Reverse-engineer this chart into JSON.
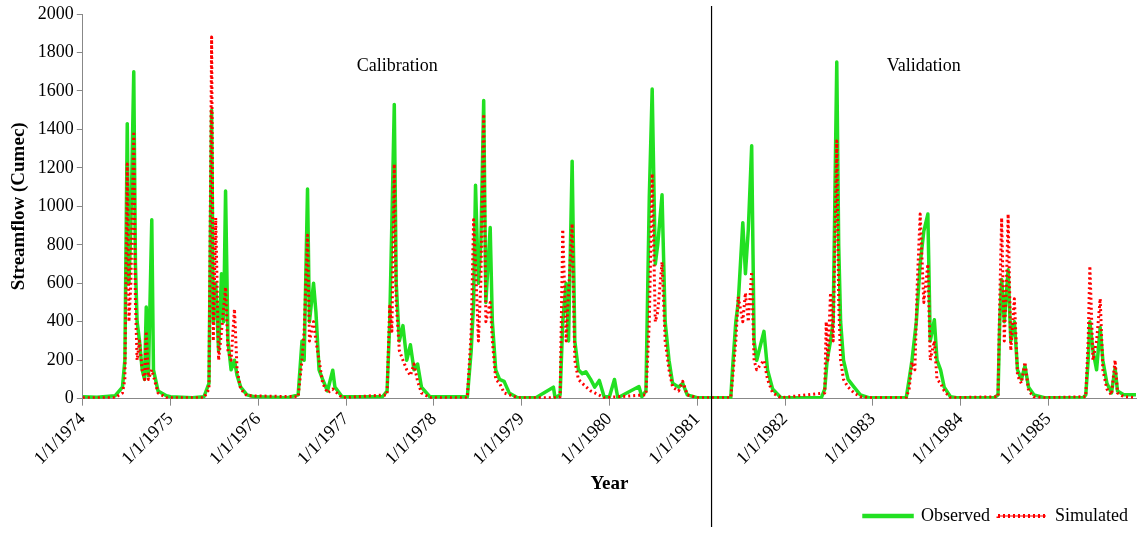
{
  "chart_data": {
    "type": "line",
    "xlabel": "Year",
    "ylabel": "Streamflow (Cumec)",
    "xlim": [
      "1974-01-01",
      "1985-12-31"
    ],
    "xticks": [
      {
        "value": "1974-01-01",
        "label": "1/1/1974"
      },
      {
        "value": "1975-01-01",
        "label": "1/1/1975"
      },
      {
        "value": "1976-01-01",
        "label": "1/1/1976"
      },
      {
        "value": "1977-01-01",
        "label": "1/1/1977"
      },
      {
        "value": "1978-01-01",
        "label": "1/1/1978"
      },
      {
        "value": "1979-01-01",
        "label": "1/1/1979"
      },
      {
        "value": "1980-01-01",
        "label": "1/1/1980"
      },
      {
        "value": "1981-01-01",
        "label": "1/1/1981"
      },
      {
        "value": "1982-01-01",
        "label": "1/1/1982"
      },
      {
        "value": "1983-01-01",
        "label": "1/1/1983"
      },
      {
        "value": "1984-01-01",
        "label": "1/1/1984"
      },
      {
        "value": "1985-01-01",
        "label": "1/1/1985"
      }
    ],
    "ylim": [
      0,
      2000
    ],
    "yticks": [
      0,
      200,
      400,
      600,
      800,
      1000,
      1200,
      1400,
      1600,
      1800,
      2000
    ],
    "legend": "bottom right",
    "ref_lines": [
      {
        "axis": "x",
        "value": "1981-03-01",
        "color": "#000000"
      }
    ],
    "annotations": [
      "Calibration",
      "Validation"
    ],
    "series": [
      {
        "name": "Observed",
        "color": "#22e022",
        "line_style": "solid",
        "x": [
          "1974-01-01",
          "1974-03-01",
          "1974-05-15",
          "1974-06-15",
          "1974-06-25",
          "1974-07-05",
          "1974-07-12",
          "1974-07-20",
          "1974-08-01",
          "1974-08-08",
          "1974-08-15",
          "1974-08-25",
          "1974-09-05",
          "1974-09-15",
          "1974-09-22",
          "1974-10-01",
          "1974-10-15",
          "1974-10-22",
          "1974-11-10",
          "1974-12-15",
          "1975-01-01",
          "1975-04-01",
          "1975-05-20",
          "1975-06-10",
          "1975-06-21",
          "1975-06-28",
          "1975-07-08",
          "1975-07-20",
          "1975-08-01",
          "1975-08-10",
          "1975-08-18",
          "1975-08-28",
          "1975-09-10",
          "1975-09-24",
          "1975-10-05",
          "1975-10-20",
          "1975-11-15",
          "1975-12-15",
          "1976-01-01",
          "1976-05-01",
          "1976-06-15",
          "1976-07-01",
          "1976-07-10",
          "1976-07-24",
          "1976-08-01",
          "1976-08-18",
          "1976-08-28",
          "1976-09-10",
          "1976-09-25",
          "1976-10-15",
          "1976-11-06",
          "1976-11-15",
          "1976-12-15",
          "1977-06-01",
          "1977-06-20",
          "1977-07-01",
          "1977-07-10",
          "1977-07-20",
          "1977-07-28",
          "1977-08-10",
          "1977-08-25",
          "1977-09-10",
          "1977-09-25",
          "1977-10-10",
          "1977-10-25",
          "1977-11-10",
          "1977-12-15",
          "1978-05-20",
          "1978-06-05",
          "1978-06-15",
          "1978-06-23",
          "1978-07-05",
          "1978-07-15",
          "1978-07-27",
          "1978-08-05",
          "1978-08-23",
          "1978-09-01",
          "1978-09-15",
          "1978-10-01",
          "1978-10-20",
          "1978-11-10",
          "1978-12-15",
          "1979-03-01",
          "1979-05-13",
          "1979-05-20",
          "1979-06-10",
          "1979-06-21",
          "1979-07-05",
          "1979-07-15",
          "1979-07-30",
          "1979-08-10",
          "1979-08-25",
          "1979-09-10",
          "1979-09-25",
          "1979-10-15",
          "1979-11-01",
          "1979-11-20",
          "1979-12-10",
          "1980-01-01",
          "1980-01-22",
          "1980-02-05",
          "1980-05-03",
          "1980-05-15",
          "1980-06-01",
          "1980-06-15",
          "1980-06-27",
          "1980-07-10",
          "1980-07-20",
          "1980-08-07",
          "1980-08-20",
          "1980-09-05",
          "1980-09-20",
          "1980-10-15",
          "1980-11-01",
          "1980-11-20",
          "1980-12-31",
          "1981-05-20",
          "1981-05-27",
          "1981-06-10",
          "1981-06-20",
          "1981-07-09",
          "1981-07-20",
          "1981-08-01",
          "1981-08-15",
          "1981-08-25",
          "1981-09-05",
          "1981-10-05",
          "1981-10-20",
          "1981-11-10",
          "1981-12-15",
          "1982-06-01",
          "1982-06-15",
          "1982-06-25",
          "1982-07-09",
          "1982-07-20",
          "1982-08-04",
          "1982-08-12",
          "1982-08-20",
          "1982-09-01",
          "1982-09-20",
          "1982-10-15",
          "1982-11-10",
          "1982-12-15",
          "1983-05-20",
          "1983-06-01",
          "1983-06-13",
          "1983-07-01",
          "1983-07-17",
          "1983-08-01",
          "1983-08-18",
          "1983-08-28",
          "1983-09-14",
          "1983-09-25",
          "1983-10-10",
          "1983-10-25",
          "1983-11-20",
          "1983-12-15",
          "1984-05-20",
          "1984-06-05",
          "1984-06-12",
          "1984-06-20",
          "1984-07-01",
          "1984-07-17",
          "1984-07-28",
          "1984-08-12",
          "1984-08-25",
          "1984-09-10",
          "1984-09-25",
          "1984-10-10",
          "1984-11-01",
          "1984-12-15",
          "1985-05-25",
          "1985-06-05",
          "1985-06-15",
          "1985-06-22",
          "1985-07-05",
          "1985-07-20",
          "1985-08-04",
          "1985-08-15",
          "1985-09-01",
          "1985-09-20",
          "1985-10-05",
          "1985-10-15",
          "1985-11-10",
          "1985-12-31"
        ],
        "values": [
          10,
          8,
          15,
          60,
          200,
          1430,
          600,
          900,
          1700,
          700,
          400,
          300,
          150,
          100,
          476,
          120,
          930,
          150,
          40,
          15,
          10,
          5,
          10,
          80,
          1500,
          400,
          600,
          250,
          650,
          400,
          1080,
          300,
          150,
          200,
          120,
          60,
          20,
          10,
          10,
          5,
          20,
          300,
          200,
          1090,
          400,
          600,
          450,
          150,
          100,
          40,
          148,
          60,
          10,
          10,
          40,
          400,
          920,
          1530,
          600,
          300,
          380,
          200,
          280,
          150,
          180,
          60,
          10,
          10,
          250,
          500,
          1110,
          600,
          800,
          1550,
          500,
          890,
          400,
          150,
          100,
          90,
          30,
          5,
          5,
          60,
          5,
          20,
          400,
          600,
          300,
          1235,
          300,
          150,
          130,
          140,
          100,
          60,
          95,
          10,
          10,
          100,
          5,
          63,
          10,
          40,
          1050,
          1610,
          700,
          800,
          1060,
          400,
          200,
          80,
          60,
          80,
          20,
          5,
          5,
          150,
          400,
          500,
          915,
          650,
          880,
          1315,
          300,
          200,
          350,
          150,
          50,
          5,
          5,
          50,
          200,
          300,
          400,
          1750,
          800,
          400,
          200,
          100,
          60,
          20,
          5,
          5,
          100,
          200,
          400,
          700,
          870,
          960,
          300,
          410,
          200,
          150,
          60,
          10,
          5,
          5,
          20,
          400,
          620,
          400,
          670,
          300,
          400,
          150,
          100,
          170,
          60,
          20,
          5,
          5,
          20,
          200,
          400,
          250,
          150,
          370,
          200,
          80,
          30,
          160,
          40,
          20,
          20
        ]
      },
      {
        "name": "Simulated",
        "color": "#ff0000",
        "line_style": "dotted",
        "x": [
          "1974-01-01",
          "1974-05-15",
          "1974-06-15",
          "1974-06-25",
          "1974-07-05",
          "1974-07-12",
          "1974-07-20",
          "1974-08-01",
          "1974-08-08",
          "1974-08-15",
          "1974-08-25",
          "1974-09-05",
          "1974-09-15",
          "1974-09-22",
          "1974-10-01",
          "1974-10-15",
          "1974-11-10",
          "1974-12-15",
          "1975-05-20",
          "1975-06-10",
          "1975-06-21",
          "1975-06-28",
          "1975-07-08",
          "1975-07-20",
          "1975-08-01",
          "1975-08-18",
          "1975-08-28",
          "1975-09-10",
          "1975-09-24",
          "1975-10-05",
          "1975-10-20",
          "1975-11-15",
          "1976-06-15",
          "1976-07-01",
          "1976-07-10",
          "1976-07-24",
          "1976-08-01",
          "1976-08-18",
          "1976-08-28",
          "1976-09-10",
          "1976-09-25",
          "1976-10-15",
          "1976-11-06",
          "1976-12-15",
          "1977-06-20",
          "1977-07-01",
          "1977-07-10",
          "1977-07-20",
          "1977-07-28",
          "1977-08-10",
          "1977-08-25",
          "1977-09-10",
          "1977-09-25",
          "1977-10-10",
          "1977-10-25",
          "1977-11-10",
          "1977-12-15",
          "1978-05-20",
          "1978-06-05",
          "1978-06-15",
          "1978-06-23",
          "1978-07-05",
          "1978-07-15",
          "1978-07-27",
          "1978-08-05",
          "1978-08-23",
          "1978-09-01",
          "1978-09-15",
          "1978-10-01",
          "1978-10-20",
          "1978-12-15",
          "1979-05-13",
          "1979-06-10",
          "1979-06-21",
          "1979-07-05",
          "1979-07-15",
          "1979-07-30",
          "1979-08-10",
          "1979-08-25",
          "1979-09-10",
          "1979-10-15",
          "1979-11-01",
          "1979-12-10",
          "1980-06-01",
          "1980-06-15",
          "1980-06-27",
          "1980-07-10",
          "1980-07-20",
          "1980-08-07",
          "1980-08-20",
          "1980-09-05",
          "1980-09-20",
          "1980-10-15",
          "1980-11-01",
          "1980-11-20",
          "1980-12-31",
          "1981-05-20",
          "1981-05-27",
          "1981-06-10",
          "1981-06-20",
          "1981-07-09",
          "1981-07-20",
          "1981-08-01",
          "1981-08-15",
          "1981-08-25",
          "1981-09-05",
          "1981-10-05",
          "1981-10-20",
          "1981-11-10",
          "1981-12-15",
          "1982-06-15",
          "1982-06-21",
          "1982-06-28",
          "1982-07-09",
          "1982-07-20",
          "1982-08-04",
          "1982-08-12",
          "1982-08-20",
          "1982-09-01",
          "1982-09-20",
          "1982-10-15",
          "1982-11-10",
          "1982-12-15",
          "1983-05-20",
          "1983-06-01",
          "1983-06-13",
          "1983-06-25",
          "1983-07-05",
          "1983-07-17",
          "1983-08-01",
          "1983-08-18",
          "1983-08-28",
          "1983-09-14",
          "1983-09-25",
          "1983-10-10",
          "1983-10-25",
          "1983-11-20",
          "1984-06-05",
          "1984-06-12",
          "1984-06-20",
          "1984-07-01",
          "1984-07-10",
          "1984-07-17",
          "1984-07-28",
          "1984-08-12",
          "1984-08-25",
          "1984-09-10",
          "1984-09-25",
          "1984-10-10",
          "1984-11-01",
          "1984-12-15",
          "1985-06-05",
          "1985-06-15",
          "1985-06-22",
          "1985-07-05",
          "1985-07-20",
          "1985-08-04",
          "1985-08-15",
          "1985-09-01",
          "1985-09-20",
          "1985-10-05",
          "1985-10-15",
          "1985-11-10",
          "1985-12-31"
        ],
        "values": [
          5,
          5,
          30,
          100,
          1220,
          400,
          600,
          1390,
          500,
          200,
          300,
          150,
          100,
          350,
          100,
          150,
          30,
          5,
          5,
          50,
          1880,
          300,
          940,
          200,
          350,
          580,
          250,
          200,
          466,
          150,
          50,
          15,
          10,
          200,
          350,
          850,
          300,
          400,
          300,
          200,
          80,
          30,
          50,
          5,
          20,
          480,
          350,
          1220,
          500,
          250,
          200,
          150,
          120,
          180,
          90,
          30,
          5,
          5,
          350,
          930,
          700,
          300,
          600,
          1480,
          400,
          500,
          300,
          100,
          80,
          30,
          5,
          5,
          10,
          880,
          300,
          550,
          910,
          200,
          100,
          80,
          40,
          30,
          5,
          20,
          400,
          1170,
          400,
          450,
          710,
          300,
          150,
          60,
          40,
          90,
          20,
          5,
          5,
          100,
          300,
          530,
          400,
          550,
          400,
          660,
          200,
          150,
          200,
          100,
          30,
          5,
          30,
          400,
          200,
          550,
          300,
          1340,
          500,
          200,
          100,
          60,
          30,
          10,
          5,
          5,
          50,
          190,
          150,
          600,
          960,
          500,
          700,
          200,
          300,
          100,
          80,
          40,
          5,
          10,
          500,
          940,
          300,
          600,
          960,
          250,
          520,
          120,
          80,
          190,
          40,
          10,
          5,
          10,
          300,
          690,
          200,
          300,
          520,
          150,
          50,
          20,
          200,
          30,
          10,
          5
        ]
      }
    ]
  }
}
